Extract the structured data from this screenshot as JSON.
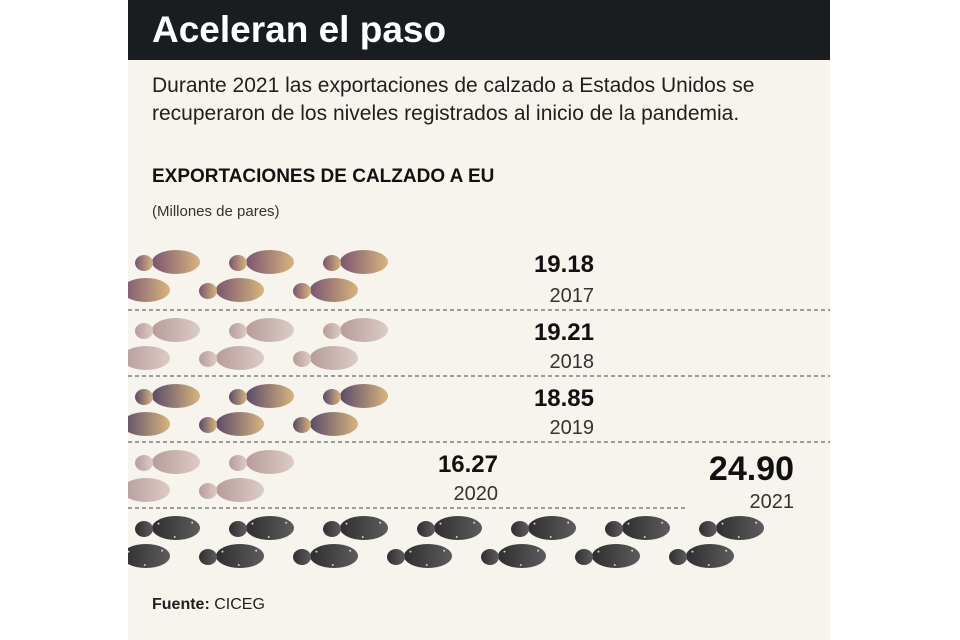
{
  "header": {
    "title": "Aceleran el paso",
    "subtitle": "Durante 2021 las exportaciones de calzado a Estados Unidos se recuperaron de los niveles registrados al inicio de la pandemia.",
    "chart_title": "EXPORTACIONES DE CALZADO A EU",
    "units": "(Millones de pares)"
  },
  "footer": {
    "source_label": "Fuente:",
    "source_value": "CICEG"
  },
  "chart_data": {
    "type": "bar",
    "title": "EXPORTACIONES DE CALZADO A EU",
    "units": "(Millones de pares)",
    "categories": [
      "2017",
      "2018",
      "2019",
      "2020",
      "2021"
    ],
    "values": [
      19.18,
      19.21,
      18.85,
      16.27,
      24.9
    ],
    "value_labels": [
      "19.18",
      "19.21",
      "18.85",
      "16.27",
      "24.90"
    ],
    "orientation": "horizontal",
    "highlight": "2021",
    "colors": {
      "2017": [
        "#7a5570",
        "#d8b57e"
      ],
      "2018": [
        "#b79c9a",
        "#dccbc6"
      ],
      "2019": [
        "#5a4a6a",
        "#d8b57e"
      ],
      "2020": [
        "#b79c9a",
        "#dccbc6"
      ],
      "2021": [
        "#3b3b3b",
        "#5c5c5c"
      ]
    }
  }
}
